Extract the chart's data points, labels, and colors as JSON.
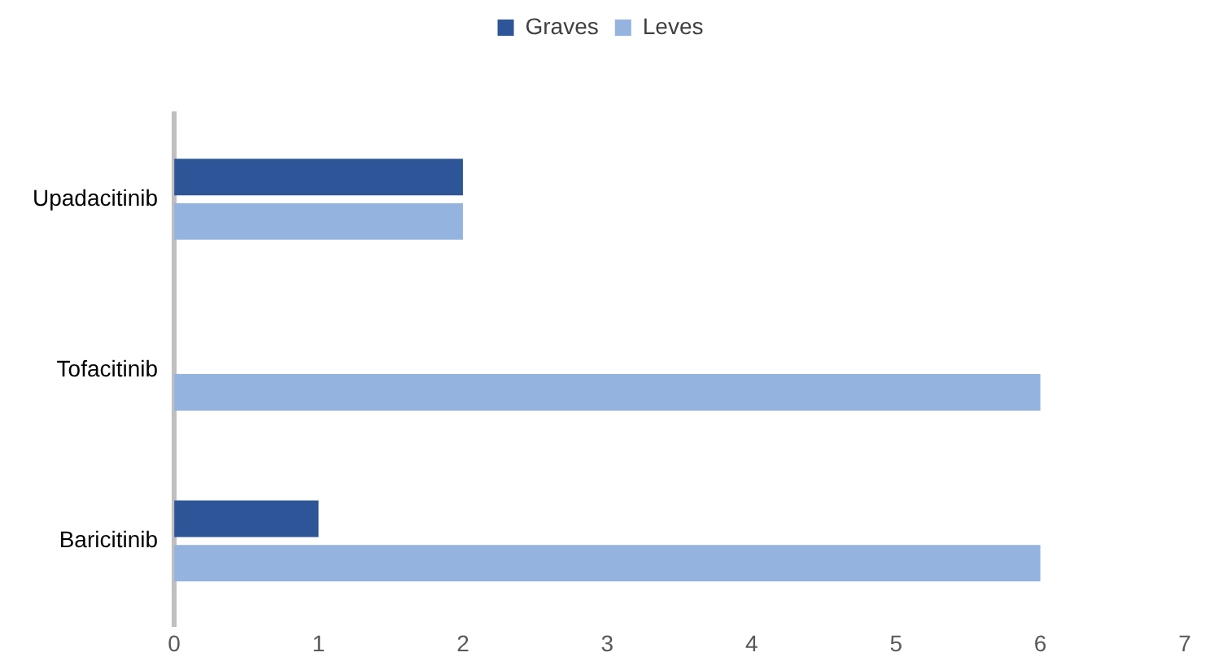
{
  "chart_data": {
    "type": "bar",
    "orientation": "horizontal",
    "categories": [
      "Upadacitinib",
      "Tofacitinib",
      "Baricitinib"
    ],
    "series": [
      {
        "name": "Graves",
        "color": "#2e5597",
        "values": [
          2,
          0,
          1
        ]
      },
      {
        "name": "Leves",
        "color": "#94b3df",
        "values": [
          2,
          6,
          6
        ]
      }
    ],
    "xlim": [
      0,
      7
    ],
    "xticks": [
      0,
      1,
      2,
      3,
      4,
      5,
      6,
      7
    ],
    "grid": false,
    "legend": "top"
  }
}
